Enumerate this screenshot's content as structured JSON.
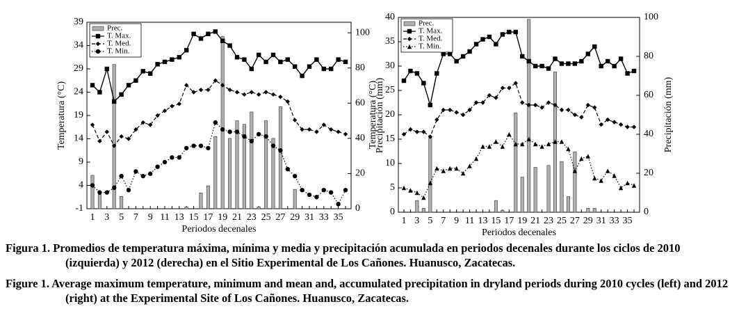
{
  "chart_data": [
    {
      "type": "combo",
      "legend": "top-left",
      "ylabel": "Temperatura (°C)",
      "y2label": "Precipitación (mm)",
      "xlabel": "Periodos decenales",
      "categories": [
        1,
        null,
        3,
        null,
        5,
        null,
        7,
        null,
        9,
        null,
        11,
        null,
        13,
        null,
        15,
        null,
        17,
        null,
        19,
        null,
        21,
        null,
        23,
        null,
        25,
        null,
        27,
        null,
        29,
        null,
        31,
        null,
        33,
        null,
        35,
        null
      ],
      "ylim": [
        -1,
        39
      ],
      "yticks": [
        -1,
        4,
        9,
        14,
        19,
        24,
        29,
        34,
        39
      ],
      "y2lim": [
        0,
        106
      ],
      "y2ticks": [
        0,
        20,
        40,
        60,
        80,
        100
      ],
      "series": [
        {
          "name": "Prec.",
          "kind": "bar",
          "axis": "y2",
          "color": "#b0b0b0",
          "values": [
            19,
            8,
            0,
            82,
            7,
            0,
            0,
            0,
            0,
            0,
            0,
            0,
            0,
            1,
            0,
            9,
            13,
            41,
            98,
            40,
            50,
            48,
            55,
            1,
            50,
            40,
            58,
            0,
            11,
            0,
            0,
            0,
            0,
            0,
            0,
            0
          ]
        },
        {
          "name": "T. Max.",
          "kind": "line",
          "style": "solid",
          "marker": "square",
          "color": "#000000",
          "values": [
            25.5,
            24,
            29,
            22,
            23.5,
            25.5,
            26.5,
            28.5,
            28,
            30,
            30.5,
            31,
            31.5,
            33,
            36.5,
            35.5,
            36.5,
            37,
            35,
            34,
            31.5,
            31,
            29,
            32,
            30.5,
            32,
            30.5,
            31,
            29.5,
            27.5,
            29.5,
            31,
            29,
            29,
            31,
            30.5
          ]
        },
        {
          "name": "T. Med.",
          "kind": "line",
          "style": "dashed",
          "marker": "diamond",
          "color": "#000000",
          "values": [
            17,
            13.5,
            15.5,
            12.5,
            14.5,
            14,
            16,
            17.5,
            17,
            19,
            20,
            21,
            21.5,
            25.5,
            24,
            24.5,
            24.5,
            26.5,
            25.5,
            24.5,
            24,
            23.5,
            24,
            23.5,
            24,
            23.5,
            23,
            22,
            18,
            16,
            16,
            15.5,
            17,
            16,
            15.5,
            15
          ]
        },
        {
          "name": "T. Min.",
          "kind": "line",
          "style": "dotted",
          "marker": "circle",
          "color": "#000000",
          "values": [
            4,
            2.5,
            2.5,
            3.5,
            6,
            3,
            7,
            6,
            6.5,
            8,
            9,
            10,
            10,
            12,
            12.5,
            12.5,
            12,
            17.5,
            16,
            15.5,
            15.5,
            14.5,
            13.5,
            15,
            14.5,
            12.5,
            11.5,
            7.5,
            6,
            3,
            2,
            1.5,
            3,
            2.5,
            0,
            3
          ]
        }
      ]
    },
    {
      "type": "combo",
      "legend": "top-left",
      "ylabel": "Temperatura (°C)",
      "y2label": "Precipitación (mm)",
      "xlabel": "Periodos decenales",
      "categories": [
        1,
        null,
        3,
        null,
        5,
        null,
        7,
        null,
        9,
        null,
        11,
        null,
        13,
        null,
        15,
        null,
        17,
        null,
        19,
        null,
        21,
        null,
        23,
        null,
        25,
        null,
        27,
        null,
        29,
        null,
        31,
        null,
        33,
        null,
        35,
        null
      ],
      "ylim": [
        0,
        40
      ],
      "yticks": [
        0,
        5,
        10,
        15,
        20,
        25,
        30,
        35,
        40
      ],
      "y2lim": [
        0,
        100
      ],
      "y2ticks": [
        0,
        20,
        40,
        60,
        80,
        100
      ],
      "series": [
        {
          "name": "Prec.",
          "kind": "bar",
          "axis": "y2",
          "color": "#b0b0b0",
          "values": [
            0,
            0,
            6,
            2,
            38,
            0,
            0,
            0,
            0,
            0,
            0,
            0,
            0,
            0,
            6,
            1,
            0,
            51,
            18,
            99,
            23,
            0,
            24,
            72,
            26,
            8,
            31,
            0,
            2,
            2,
            0,
            0,
            0,
            0,
            0,
            0
          ]
        },
        {
          "name": "T. Max.",
          "kind": "line",
          "style": "solid",
          "marker": "square",
          "color": "#000000",
          "values": [
            27,
            29,
            28.5,
            26.5,
            22,
            28.5,
            32.5,
            32.5,
            31,
            32,
            33,
            34.5,
            35.5,
            36,
            34.5,
            36.5,
            37,
            37,
            32,
            31,
            30,
            30,
            29.5,
            31.5,
            30.5,
            30.5,
            30.5,
            31,
            32.5,
            34,
            30,
            31,
            30,
            31.5,
            28.5,
            29
          ]
        },
        {
          "name": "T. Med.",
          "kind": "line",
          "style": "dashed",
          "marker": "diamond",
          "color": "#000000",
          "values": [
            16,
            17,
            16.5,
            16.5,
            15.5,
            19,
            21,
            21,
            20.5,
            20,
            21,
            22.5,
            22.5,
            24,
            23.5,
            25.5,
            25.5,
            26.5,
            22.5,
            22,
            22,
            21.5,
            22.5,
            22,
            21,
            21,
            20,
            19.5,
            22,
            21.5,
            18,
            19,
            18.5,
            18,
            17.5,
            17.5
          ]
        },
        {
          "name": "T. Min.",
          "kind": "line",
          "style": "dotted",
          "marker": "triangle",
          "color": "#000000",
          "values": [
            5,
            4.5,
            4,
            3,
            6,
            9,
            8.5,
            9,
            9,
            8,
            9.5,
            11,
            13.5,
            13.5,
            14.5,
            13.5,
            16,
            14,
            14,
            15,
            14,
            13.5,
            14,
            14.5,
            14.5,
            13,
            8.5,
            11,
            11.5,
            7,
            6.5,
            8.5,
            7.5,
            5,
            6,
            5.5
          ]
        }
      ]
    }
  ],
  "captions": [
    "Figura 1. Promedios de temperatura máxima, mínima y media y precipitación acumulada en periodos decenales durante los ciclos de 2010 (izquierda) y 2012 (derecha) en el Sitio Experimental de Los Cañones. Huanusco, Zacatecas.",
    "Figure 1. Average maximum temperature, minimum and mean and, accumulated precipitation in dryland periods during 2010 cycles (left) and 2012 (right) at the Experimental Site of Los Cañones. Huanusco, Zacatecas."
  ]
}
